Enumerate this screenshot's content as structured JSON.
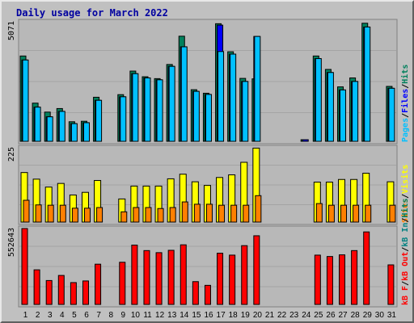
{
  "title": "Daily usage for March 2022",
  "colors": {
    "hits": "#00805c",
    "files": "#0000ff",
    "pages": "#00c0ff",
    "visits": "#ffff00",
    "sites": "#ff8000",
    "kbin": "#008080",
    "kbout": "#ff0000",
    "kbf": "#ff0000",
    "weekend_label": "#008000",
    "background": "#c0c0c0",
    "title": "#0000a0"
  },
  "chart_data": [
    {
      "type": "bar",
      "title": "Daily usage for March 2022",
      "y_max_label": "5071",
      "ylim": [
        0,
        5071
      ],
      "categories": [
        "1",
        "2",
        "3",
        "4",
        "5",
        "6",
        "7",
        "8",
        "9",
        "10",
        "11",
        "12",
        "13",
        "14",
        "15",
        "16",
        "17",
        "18",
        "19",
        "20",
        "21",
        "22",
        "23",
        "24",
        "25",
        "26",
        "27",
        "28",
        "29",
        "30",
        "31"
      ],
      "legend_labels": [
        "Hits",
        "Files",
        "Pages"
      ],
      "separators": [
        "/",
        "/"
      ],
      "legend_colors": [
        "#00805c",
        "#0000ff",
        "#00c0ff"
      ],
      "series": [
        {
          "name": "Hits",
          "values": [
            3620,
            1620,
            1240,
            1390,
            830,
            850,
            1870,
            0,
            1980,
            2980,
            2740,
            2660,
            3260,
            4460,
            2190,
            2040,
            4990,
            3800,
            2670,
            2650,
            0,
            0,
            0,
            40,
            3620,
            3050,
            2310,
            2690,
            5010,
            0,
            2330
          ]
        },
        {
          "name": "Files",
          "values": [
            3450,
            1450,
            1040,
            1270,
            750,
            790,
            1740,
            0,
            1890,
            2870,
            2690,
            2610,
            3180,
            4010,
            2120,
            1990,
            4930,
            3700,
            2540,
            4450,
            0,
            0,
            0,
            40,
            3510,
            2920,
            2180,
            2540,
            4850,
            0,
            2250
          ]
        },
        {
          "name": "Pages",
          "values": [
            3450,
            1450,
            1040,
            1270,
            750,
            790,
            1740,
            0,
            1890,
            2870,
            2690,
            2610,
            3180,
            4010,
            2120,
            1990,
            3810,
            3700,
            2540,
            4450,
            0,
            0,
            0,
            0,
            3510,
            2920,
            2180,
            2540,
            4850,
            0,
            2250
          ]
        }
      ]
    },
    {
      "type": "bar",
      "y_max_label": "225",
      "ylim": [
        0,
        225
      ],
      "categories": [
        "1",
        "2",
        "3",
        "4",
        "5",
        "6",
        "7",
        "8",
        "9",
        "10",
        "11",
        "12",
        "13",
        "14",
        "15",
        "16",
        "17",
        "18",
        "19",
        "20",
        "21",
        "22",
        "23",
        "24",
        "25",
        "26",
        "27",
        "28",
        "29",
        "30",
        "31"
      ],
      "legend_labels": [
        "Visits",
        "Sites"
      ],
      "separators": [
        "/"
      ],
      "legend_colors": [
        "#ffff00",
        "#ff8000"
      ],
      "series": [
        {
          "name": "Visits",
          "values": [
            150,
            130,
            106,
            117,
            82,
            90,
            126,
            0,
            70,
            109,
            109,
            109,
            131,
            145,
            122,
            111,
            135,
            143,
            181,
            224,
            0,
            0,
            0,
            0,
            121,
            121,
            129,
            129,
            148,
            0,
            122
          ]
        },
        {
          "name": "Sites",
          "values": [
            66,
            52,
            51,
            51,
            42,
            42,
            44,
            0,
            31,
            44,
            44,
            41,
            44,
            61,
            54,
            54,
            51,
            51,
            51,
            80,
            0,
            0,
            0,
            0,
            56,
            51,
            51,
            51,
            51,
            0,
            51
          ]
        }
      ]
    },
    {
      "type": "bar",
      "y_max_label": "552643",
      "ylim": [
        0,
        552643
      ],
      "categories": [
        "1",
        "2",
        "3",
        "4",
        "5",
        "6",
        "7",
        "8",
        "9",
        "10",
        "11",
        "12",
        "13",
        "14",
        "15",
        "16",
        "17",
        "18",
        "19",
        "20",
        "21",
        "22",
        "23",
        "24",
        "25",
        "26",
        "27",
        "28",
        "29",
        "30",
        "31"
      ],
      "legend_labels": [
        "Hits",
        "kB In",
        "kB Out",
        "kB F"
      ],
      "separators": [
        "/",
        "/",
        "/"
      ],
      "legend_colors": [
        "#00805c",
        "#008080",
        "#ff0000",
        "#ff0000"
      ],
      "series": [
        {
          "name": "kB F",
          "values": [
            552643,
            252000,
            174000,
            211000,
            159000,
            171000,
            293000,
            0,
            307000,
            432000,
            392000,
            377000,
            394000,
            434000,
            166000,
            139000,
            373000,
            359000,
            428000,
            500000,
            0,
            0,
            0,
            0,
            359000,
            349000,
            361000,
            392000,
            528000,
            0,
            288000
          ]
        }
      ]
    }
  ],
  "day_label_colors": [
    "#000000",
    "#000000",
    "#000000",
    "#000000",
    "#008000",
    "#008000",
    "#000000",
    "#000000",
    "#000000",
    "#000000",
    "#000000",
    "#008000",
    "#008000",
    "#000000",
    "#000000",
    "#000000",
    "#000000",
    "#000000",
    "#008000",
    "#008000",
    "#000000",
    "#000000",
    "#000000",
    "#000000",
    "#000000",
    "#008000",
    "#008000",
    "#000000",
    "#000000",
    "#000000",
    "#000000"
  ]
}
